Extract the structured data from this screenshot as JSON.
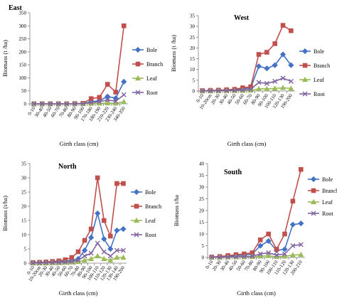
{
  "colors": {
    "Bole": "#4472c4",
    "Branch": "#c0504d",
    "Leaf": "#9bbb59",
    "Root": "#8064a2"
  },
  "chart_data": [
    {
      "type": "line",
      "title": "East",
      "xlabel": "Girth class (cm)",
      "ylabel": "Biomass (t /ha)",
      "ylim": [
        0,
        350
      ],
      "yticks": [
        0,
        50,
        100,
        150,
        200,
        250,
        300,
        350
      ],
      "grid": false,
      "legend": "right",
      "categories": [
        "0-10",
        "30-40",
        "40-50",
        "60-70",
        "70-80",
        "80-90",
        "90-100",
        "170-180",
        "180-190",
        "210-220",
        "230-240",
        "340-350"
      ],
      "series": [
        {
          "name": "Bole",
          "values": [
            0,
            0,
            0,
            0,
            0,
            0,
            1,
            8,
            12,
            28,
            22,
            85
          ]
        },
        {
          "name": "Branch",
          "values": [
            0,
            0,
            0,
            0,
            0,
            1,
            2,
            20,
            25,
            75,
            45,
            300
          ]
        },
        {
          "name": "Leaf",
          "values": [
            0,
            0,
            0,
            0,
            0,
            0,
            0,
            1,
            2,
            3,
            2,
            8
          ]
        },
        {
          "name": "Root",
          "values": [
            0,
            0,
            0,
            0,
            0,
            0,
            1,
            5,
            8,
            15,
            10,
            35
          ]
        }
      ]
    },
    {
      "type": "line",
      "title": "West",
      "xlabel": "Girth class (cm)",
      "ylabel": "Biomass (t /ha)",
      "ylim": [
        0,
        35
      ],
      "yticks": [
        0,
        5,
        10,
        15,
        20,
        25,
        30,
        35
      ],
      "grid": false,
      "legend": "right",
      "categories": [
        "0-10",
        "10-20cm",
        "20-30",
        "30-40",
        "40-50",
        "50-60",
        "60-70",
        "80-90",
        "90-100",
        "100-110",
        "120-130",
        "190-200"
      ],
      "series": [
        {
          "name": "Bole",
          "values": [
            0.1,
            0.2,
            0.3,
            0.4,
            0.5,
            1,
            1.5,
            11.5,
            10.5,
            12,
            17,
            12
          ]
        },
        {
          "name": "Branch",
          "values": [
            0.2,
            0.3,
            0.4,
            0.6,
            0.8,
            1.5,
            2,
            17,
            18,
            22,
            30.5,
            28
          ]
        },
        {
          "name": "Leaf",
          "values": [
            0,
            0,
            0,
            0.1,
            0.1,
            0.2,
            0.3,
            1,
            1,
            1.2,
            1.5,
            1.2
          ]
        },
        {
          "name": "Root",
          "values": [
            0.1,
            0.1,
            0.2,
            0.2,
            0.3,
            0.5,
            0.8,
            4,
            3.5,
            4.5,
            6,
            4.5
          ]
        }
      ]
    },
    {
      "type": "line",
      "title": "North",
      "xlabel": "Girth class (cm)",
      "ylabel": "Biomass (t/ha)",
      "ylim": [
        0,
        35
      ],
      "yticks": [
        0,
        5,
        10,
        15,
        20,
        25,
        30,
        35
      ],
      "grid": false,
      "legend": "right",
      "categories": [
        "0-10",
        "10-20cm",
        "20-30",
        "30-40",
        "40-50",
        "50-60",
        "60-70",
        "70-80",
        "80-90",
        "90-100",
        "100-110",
        "110-120",
        "120-130",
        "130-140",
        "190-200"
      ],
      "series": [
        {
          "name": "Bole",
          "values": [
            0.1,
            0.2,
            0.3,
            0.4,
            0.5,
            0.7,
            1,
            1.5,
            4.5,
            9,
            17.5,
            8.5,
            5,
            11.5,
            12
          ]
        },
        {
          "name": "Branch",
          "values": [
            0.2,
            0.3,
            0.4,
            0.6,
            0.8,
            1.2,
            2,
            4,
            8,
            12,
            30,
            15,
            9.5,
            28,
            28
          ]
        },
        {
          "name": "Leaf",
          "values": [
            0,
            0,
            0,
            0.1,
            0.1,
            0.2,
            0.3,
            0.5,
            1,
            1.5,
            2.5,
            1.5,
            1,
            2,
            2
          ]
        },
        {
          "name": "Root",
          "values": [
            0.1,
            0.1,
            0.2,
            0.2,
            0.3,
            0.4,
            0.6,
            1,
            2.5,
            3.5,
            7,
            4,
            2.5,
            4.5,
            4.5
          ]
        }
      ]
    },
    {
      "type": "line",
      "title": "South",
      "xlabel": "Girth class (cm)",
      "ylabel": "Biomass t/ha",
      "ylim": [
        0,
        40
      ],
      "yticks": [
        0,
        5,
        10,
        15,
        20,
        25,
        30,
        35,
        40
      ],
      "grid": false,
      "legend": "right",
      "categories": [
        "0-10",
        "20-30",
        "30-40",
        "40-50",
        "50-60",
        "70-80",
        "80-90",
        "90-100",
        "100-110",
        "110-120",
        "120-130",
        "200-210"
      ],
      "series": [
        {
          "name": "Bole",
          "values": [
            0.1,
            0.2,
            0.5,
            0.8,
            1,
            1.5,
            5,
            7,
            3,
            3.5,
            14,
            14.5
          ]
        },
        {
          "name": "Branch",
          "values": [
            0.2,
            0.4,
            0.8,
            1.2,
            1.5,
            2,
            7.5,
            10,
            3.5,
            10,
            24,
            37.5
          ]
        },
        {
          "name": "Leaf",
          "values": [
            0,
            0,
            0.1,
            0.2,
            0.2,
            0.3,
            0.5,
            0.7,
            0.3,
            0.5,
            1,
            1.2
          ]
        },
        {
          "name": "Root",
          "values": [
            0.1,
            0.1,
            0.2,
            0.3,
            0.4,
            0.5,
            1.5,
            2,
            1,
            1.5,
            5,
            5.5
          ]
        }
      ]
    }
  ]
}
